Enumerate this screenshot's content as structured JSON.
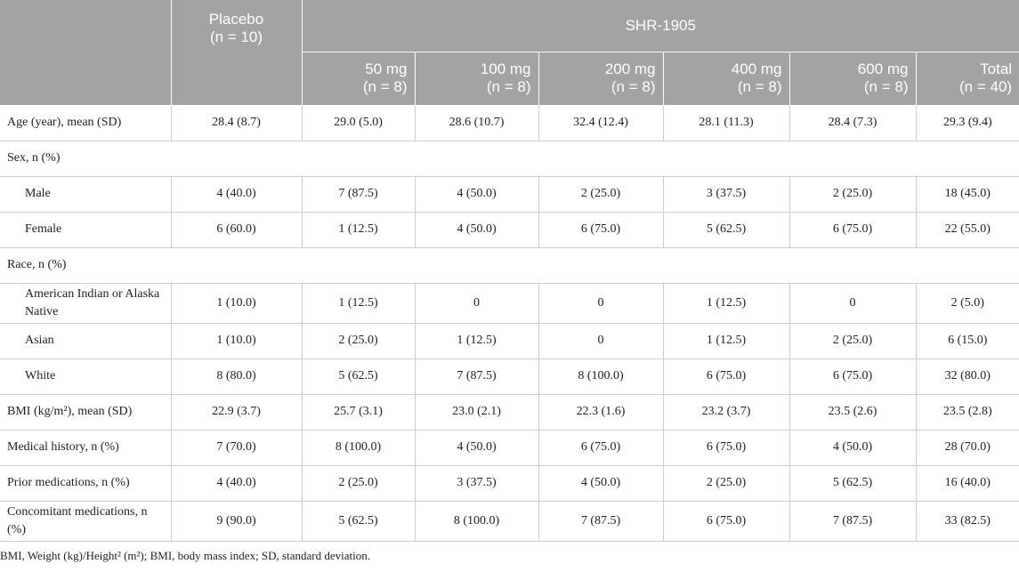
{
  "table": {
    "stub_header": "",
    "placebo": {
      "name": "Placebo",
      "n": "(n = 10)"
    },
    "group": "SHR-1905",
    "doses": [
      {
        "name": "50 mg",
        "n": "(n = 8)"
      },
      {
        "name": "100 mg",
        "n": "(n = 8)"
      },
      {
        "name": "200 mg",
        "n": "(n = 8)"
      },
      {
        "name": "400 mg",
        "n": "(n = 8)"
      },
      {
        "name": "600 mg",
        "n": "(n = 8)"
      },
      {
        "name": "Total",
        "n": "(n = 40)"
      }
    ],
    "rows": [
      {
        "label": "Age (year), mean (SD)",
        "cells": [
          "28.4 (8.7)",
          "29.0 (5.0)",
          "28.6 (10.7)",
          "32.4 (12.4)",
          "28.1 (11.3)",
          "28.4 (7.3)",
          "29.3 (9.4)"
        ]
      },
      {
        "label": "Sex, n (%)",
        "items": [
          {
            "label": "Male",
            "cells": [
              "4 (40.0)",
              "7 (87.5)",
              "4 (50.0)",
              "2 (25.0)",
              "3 (37.5)",
              "2 (25.0)",
              "18 (45.0)"
            ]
          },
          {
            "label": "Female",
            "cells": [
              "6 (60.0)",
              "1 (12.5)",
              "4 (50.0)",
              "6 (75.0)",
              "5 (62.5)",
              "6 (75.0)",
              "22 (55.0)"
            ]
          }
        ]
      },
      {
        "label": "Race, n (%)",
        "items": [
          {
            "label": "American Indian or Alaska Native",
            "cells": [
              "1 (10.0)",
              "1 (12.5)",
              "0",
              "0",
              "1 (12.5)",
              "0",
              "2 (5.0)"
            ]
          },
          {
            "label": "Asian",
            "cells": [
              "1 (10.0)",
              "2 (25.0)",
              "1 (12.5)",
              "0",
              "1 (12.5)",
              "2 (25.0)",
              "6 (15.0)"
            ]
          },
          {
            "label": "White",
            "cells": [
              "8 (80.0)",
              "5 (62.5)",
              "7 (87.5)",
              "8 (100.0)",
              "6 (75.0)",
              "6 (75.0)",
              "32 (80.0)"
            ]
          }
        ]
      },
      {
        "label": "BMI (kg/m²), mean (SD)",
        "cells": [
          "22.9 (3.7)",
          "25.7 (3.1)",
          "23.0 (2.1)",
          "22.3 (1.6)",
          "23.2 (3.7)",
          "23.5 (2.6)",
          "23.5 (2.8)"
        ]
      },
      {
        "label": "Medical history, n (%)",
        "cells": [
          "7 (70.0)",
          "8 (100.0)",
          "4 (50.0)",
          "6 (75.0)",
          "6 (75.0)",
          "4 (50.0)",
          "28 (70.0)"
        ]
      },
      {
        "label": "Prior medications, n (%)",
        "cells": [
          "4 (40.0)",
          "2 (25.0)",
          "3 (37.5)",
          "4 (50.0)",
          "2 (25.0)",
          "5 (62.5)",
          "16 (40.0)"
        ]
      },
      {
        "label": "Concomitant medications, n (%)",
        "cells": [
          "9 (90.0)",
          "5 (62.5)",
          "8 (100.0)",
          "7 (87.5)",
          "6 (75.0)",
          "7 (87.5)",
          "33 (82.5)"
        ]
      }
    ],
    "footnote": "BMI, Weight (kg)/Height² (m²); BMI, body mass index; SD, standard deviation."
  }
}
